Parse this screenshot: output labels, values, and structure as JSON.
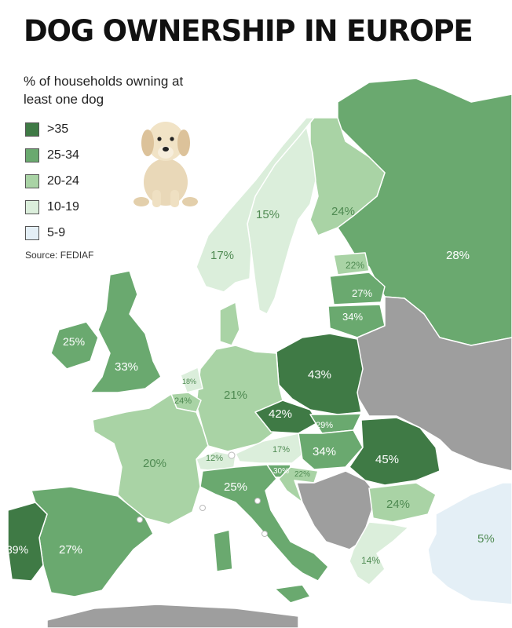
{
  "title": "DOG OWNERSHIP IN EUROPE",
  "subtitle": "% of households owning at least one dog",
  "source": "Source: FEDIAF",
  "legend": [
    {
      "label": ">35",
      "color": "#3f7a45"
    },
    {
      "label": "25-34",
      "color": "#6aa96f"
    },
    {
      "label": "20-24",
      "color": "#a9d3a5"
    },
    {
      "label": "10-19",
      "color": "#dbeedb"
    },
    {
      "label": "5-9",
      "color": "#e4eff6"
    }
  ],
  "colors": {
    "sea": "#ffffff",
    "no_data": "#9e9e9e",
    "border": "#ffffff",
    "label_dark": "#ffffff",
    "label_light": "#4f8a52"
  },
  "countries": [
    {
      "label": "39%",
      "value": 39,
      "class": ">35"
    },
    {
      "label": "27%",
      "value": 27,
      "class": "25-34"
    },
    {
      "label": "20%",
      "value": 20,
      "class": "20-24"
    },
    {
      "label": "25%",
      "value": 25,
      "class": "25-34"
    },
    {
      "label": "33%",
      "value": 33,
      "class": "25-34"
    },
    {
      "label": "18%",
      "value": 18,
      "class": "10-19"
    },
    {
      "label": "24%",
      "value": 24,
      "class": "20-24"
    },
    {
      "label": "21%",
      "value": 21,
      "class": "20-24"
    },
    {
      "label": "12%",
      "value": 12,
      "class": "10-19"
    },
    {
      "label": "25%",
      "value": 25,
      "class": "25-34"
    },
    {
      "label": "42%",
      "value": 42,
      "class": ">35"
    },
    {
      "label": "43%",
      "value": 43,
      "class": ">35"
    },
    {
      "label": "17%",
      "value": 17,
      "class": "10-19"
    },
    {
      "label": "29%",
      "value": 29,
      "class": "25-34"
    },
    {
      "label": "34%",
      "value": 34,
      "class": "25-34"
    },
    {
      "label": "30%",
      "value": 30,
      "class": "25-34"
    },
    {
      "label": "22%",
      "value": 22,
      "class": "20-24"
    },
    {
      "label": "45%",
      "value": 45,
      "class": ">35"
    },
    {
      "label": "24%",
      "value": 24,
      "class": "20-24"
    },
    {
      "label": "14%",
      "value": 14,
      "class": "10-19"
    },
    {
      "label": "5%",
      "value": 5,
      "class": "5-9"
    },
    {
      "label": "17%",
      "value": 17,
      "class": "10-19"
    },
    {
      "label": "15%",
      "value": 15,
      "class": "10-19"
    },
    {
      "label": "24%",
      "value": 24,
      "class": "20-24"
    },
    {
      "label": "22%",
      "value": 22,
      "class": "20-24"
    },
    {
      "label": "27%",
      "value": 27,
      "class": "25-34"
    },
    {
      "label": "34%",
      "value": 34,
      "class": "25-34"
    },
    {
      "label": "28%",
      "value": 28,
      "class": "25-34"
    }
  ]
}
